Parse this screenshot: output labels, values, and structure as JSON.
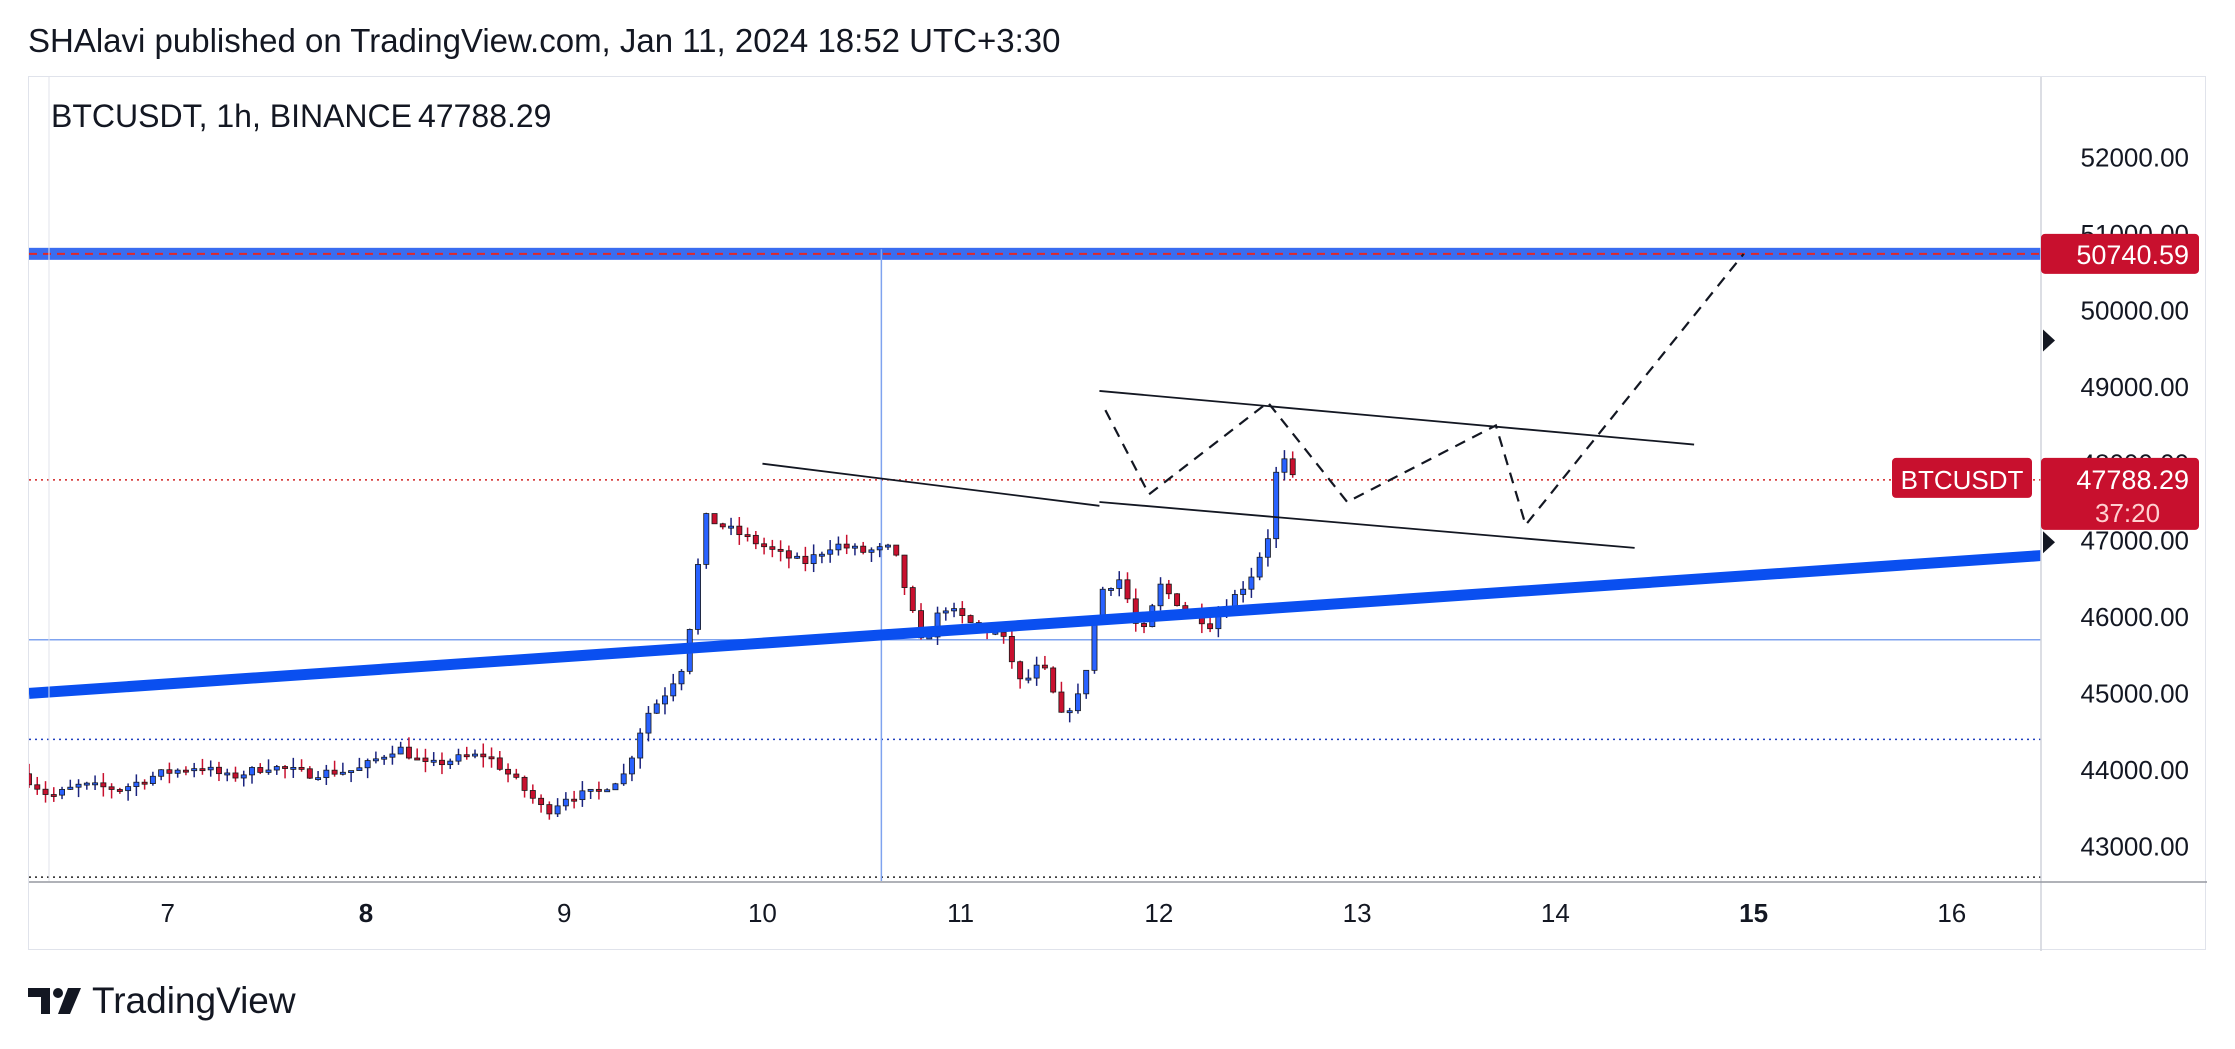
{
  "header": {
    "published_text": "SHAlavi published on TradingView.com, Jan 11, 2024 18:52 UTC+3:30"
  },
  "symbol_line": {
    "symbol": "BTCUSDT, 1h, BINANCE",
    "last_price": "47788.29"
  },
  "price_labels": {
    "resistance": "50740.59",
    "symbol_tag": "BTCUSDT",
    "current_price": "47788.29",
    "countdown": "37:20"
  },
  "footer": {
    "brand": "TradingView"
  },
  "colors": {
    "bull": "#2962ff",
    "bear": "#c8102e",
    "trendline": "#0a4ff0",
    "label_bg": "#c8102e",
    "axis_text": "#131722",
    "thin_line": "#7fa3ef"
  },
  "chart_data": {
    "type": "candlestick",
    "title": "BTCUSDT, 1h, BINANCE",
    "y_range": [
      42550,
      53050
    ],
    "y_axis_ticks": [
      "43000.00",
      "44000.00",
      "45000.00",
      "46000.00",
      "47000.00",
      "48000.00",
      "49000.00",
      "50000.00",
      "51000.00",
      "52000.00"
    ],
    "x_range": [
      6.3,
      16.45
    ],
    "x_axis_ticks": [
      {
        "day": 7,
        "label": "7",
        "bold": false
      },
      {
        "day": 8,
        "label": "8",
        "bold": true
      },
      {
        "day": 9,
        "label": "9",
        "bold": false
      },
      {
        "day": 10,
        "label": "10",
        "bold": false
      },
      {
        "day": 11,
        "label": "11",
        "bold": false
      },
      {
        "day": 12,
        "label": "12",
        "bold": false
      },
      {
        "day": 13,
        "label": "13",
        "bold": false
      },
      {
        "day": 14,
        "label": "14",
        "bold": false
      },
      {
        "day": 15,
        "label": "15",
        "bold": true
      },
      {
        "day": 16,
        "label": "16",
        "bold": false
      }
    ],
    "path_points": [
      [
        6.3,
        43950
      ],
      [
        6.45,
        43650
      ],
      [
        6.6,
        43800
      ],
      [
        6.8,
        43750
      ],
      [
        7.0,
        43950
      ],
      [
        7.2,
        44050
      ],
      [
        7.35,
        43900
      ],
      [
        7.55,
        44050
      ],
      [
        7.75,
        43950
      ],
      [
        8.0,
        44000
      ],
      [
        8.2,
        44300
      ],
      [
        8.35,
        44050
      ],
      [
        8.5,
        44150
      ],
      [
        8.65,
        44200
      ],
      [
        8.8,
        43850
      ],
      [
        8.95,
        43450
      ],
      [
        9.05,
        43650
      ],
      [
        9.2,
        43700
      ],
      [
        9.35,
        43950
      ],
      [
        9.45,
        44700
      ],
      [
        9.55,
        45000
      ],
      [
        9.65,
        45400
      ],
      [
        9.75,
        47300
      ],
      [
        9.95,
        47050
      ],
      [
        10.1,
        46850
      ],
      [
        10.25,
        46700
      ],
      [
        10.4,
        46950
      ],
      [
        10.55,
        46850
      ],
      [
        10.7,
        46900
      ],
      [
        10.85,
        45600
      ],
      [
        10.95,
        46150
      ],
      [
        11.1,
        45900
      ],
      [
        11.25,
        45750
      ],
      [
        11.35,
        45100
      ],
      [
        11.45,
        45400
      ],
      [
        11.55,
        44700
      ],
      [
        11.65,
        45000
      ],
      [
        11.75,
        46350
      ],
      [
        11.85,
        46500
      ],
      [
        11.95,
        45700
      ],
      [
        12.05,
        46400
      ],
      [
        12.15,
        46150
      ],
      [
        12.3,
        45900
      ],
      [
        12.4,
        46200
      ],
      [
        12.5,
        46500
      ],
      [
        12.6,
        47100
      ],
      [
        12.65,
        48250
      ],
      [
        12.7,
        47800
      ]
    ],
    "volatility_note": "hourly candles",
    "horizontal_levels": [
      {
        "price": 50740.59,
        "style": "solid-blue-dashed-red"
      },
      {
        "price": 47788.29,
        "style": "dotted-red"
      },
      {
        "price": 45700,
        "style": "solid-thin-blue"
      },
      {
        "price": 44400,
        "style": "dotted-blue"
      },
      {
        "price": 42600,
        "style": "dotted-black"
      }
    ],
    "vertical_line_day": 10.6,
    "trendline": {
      "points": [
        [
          6.3,
          45000
        ],
        [
          16.45,
          46800
        ]
      ]
    },
    "wedge_upper": {
      "points": [
        [
          11.7,
          48950
        ],
        [
          14.7,
          48250
        ]
      ]
    },
    "wedge_lower": {
      "points": [
        [
          11.7,
          47500
        ],
        [
          14.4,
          46900
        ]
      ]
    },
    "triangle_upper": {
      "points": [
        [
          10.0,
          48000
        ],
        [
          11.7,
          47450
        ]
      ]
    },
    "projection_path": {
      "points": [
        [
          11.73,
          48700
        ],
        [
          11.95,
          47600
        ],
        [
          12.55,
          48800
        ],
        [
          12.95,
          47500
        ],
        [
          13.7,
          48500
        ],
        [
          13.85,
          47200
        ],
        [
          14.95,
          50740
        ]
      ]
    }
  }
}
